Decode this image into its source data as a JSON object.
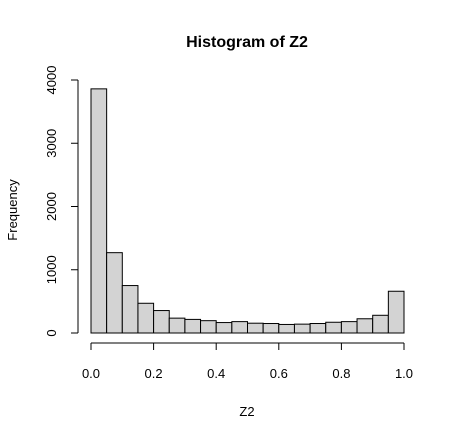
{
  "chart_data": {
    "type": "bar",
    "title": "Histogram of Z2",
    "xlabel": "Z2",
    "ylabel": "Frequency",
    "bin_width": 0.05,
    "bin_starts": [
      0.0,
      0.05,
      0.1,
      0.15,
      0.2,
      0.25,
      0.3,
      0.35,
      0.4,
      0.45,
      0.5,
      0.55,
      0.6,
      0.65,
      0.7,
      0.75,
      0.8,
      0.85,
      0.9,
      0.95
    ],
    "values": [
      3860,
      1270,
      750,
      470,
      355,
      235,
      215,
      195,
      165,
      180,
      155,
      150,
      135,
      140,
      150,
      170,
      180,
      225,
      280,
      660
    ],
    "xlim": [
      0,
      1
    ],
    "ylim": [
      0,
      4000
    ],
    "x_ticks": [
      0.0,
      0.2,
      0.4,
      0.6,
      0.8,
      1.0
    ],
    "x_tick_labels": [
      "0.0",
      "0.2",
      "0.4",
      "0.6",
      "0.8",
      "1.0"
    ],
    "y_ticks": [
      0,
      1000,
      2000,
      3000,
      4000
    ],
    "y_tick_labels": [
      "0",
      "1000",
      "2000",
      "3000",
      "4000"
    ],
    "bar_fill": "#d3d3d3",
    "bar_stroke": "#000000"
  }
}
